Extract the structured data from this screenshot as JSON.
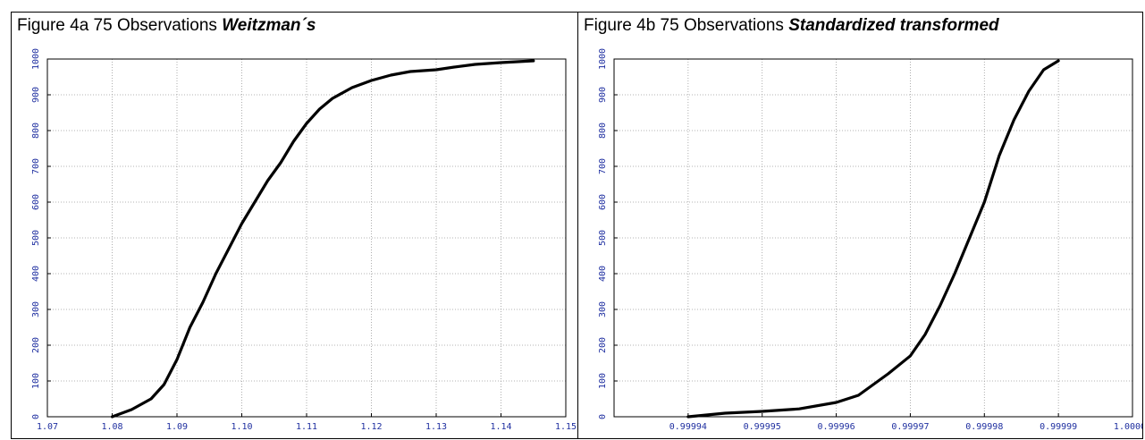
{
  "figures": [
    {
      "title_prefix": "Figure 4a 75 Observations ",
      "title_emph": "Weitzman´s"
    },
    {
      "title_prefix": "Figure 4b 75 Observations ",
      "title_emph": "Standardized transformed"
    }
  ],
  "chart_data": [
    {
      "type": "line",
      "title": "",
      "xlabel": "",
      "ylabel": "",
      "xlim": [
        1.07,
        1.15
      ],
      "ylim": [
        0,
        1000
      ],
      "grid": true,
      "x_ticks": [
        "1.07",
        "1.08",
        "1.09",
        "1.10",
        "1.11",
        "1.12",
        "1.13",
        "1.14",
        "1.15"
      ],
      "x_tick_values": [
        1.07,
        1.08,
        1.09,
        1.1,
        1.11,
        1.12,
        1.13,
        1.14,
        1.15
      ],
      "y_ticks": [
        "0",
        "100",
        "200",
        "300",
        "400",
        "500",
        "600",
        "700",
        "800",
        "900",
        "1000"
      ],
      "y_tick_values": [
        0,
        100,
        200,
        300,
        400,
        500,
        600,
        700,
        800,
        900,
        1000
      ],
      "color": "#000000",
      "series": [
        {
          "x": [
            1.08,
            1.083,
            1.086,
            1.088,
            1.09,
            1.092,
            1.094,
            1.096,
            1.098,
            1.1,
            1.102,
            1.104,
            1.106,
            1.108,
            1.11,
            1.112,
            1.114,
            1.117,
            1.12,
            1.123,
            1.126,
            1.13,
            1.133,
            1.136,
            1.14,
            1.145
          ],
          "y": [
            0,
            20,
            50,
            90,
            160,
            250,
            320,
            400,
            470,
            540,
            600,
            660,
            710,
            770,
            820,
            860,
            890,
            920,
            940,
            955,
            965,
            970,
            978,
            985,
            990,
            995
          ]
        }
      ]
    },
    {
      "type": "line",
      "title": "",
      "xlabel": "",
      "ylabel": "",
      "xlim": [
        0.99993,
        1.0
      ],
      "ylim": [
        0,
        1000
      ],
      "grid": true,
      "x_ticks": [
        "0.99994",
        "0.99995",
        "0.99996",
        "0.99997",
        "0.99998",
        "0.99999",
        "1.00000"
      ],
      "x_tick_values": [
        0.99994,
        0.99995,
        0.99996,
        0.99997,
        0.99998,
        0.99999,
        1.0
      ],
      "y_ticks": [
        "0",
        "100",
        "200",
        "300",
        "400",
        "500",
        "600",
        "700",
        "800",
        "900",
        "1000"
      ],
      "y_tick_values": [
        0,
        100,
        200,
        300,
        400,
        500,
        600,
        700,
        800,
        900,
        1000
      ],
      "color": "#000000",
      "series": [
        {
          "x": [
            0.99994,
            0.999945,
            0.99995,
            0.999955,
            0.99996,
            0.999963,
            0.999965,
            0.999967,
            0.99997,
            0.999972,
            0.999974,
            0.999976,
            0.999978,
            0.99998,
            0.999982,
            0.999984,
            0.999986,
            0.999988,
            0.99999
          ],
          "y": [
            0,
            10,
            15,
            22,
            40,
            60,
            90,
            120,
            170,
            230,
            310,
            400,
            500,
            600,
            730,
            830,
            910,
            970,
            995
          ]
        }
      ]
    }
  ]
}
